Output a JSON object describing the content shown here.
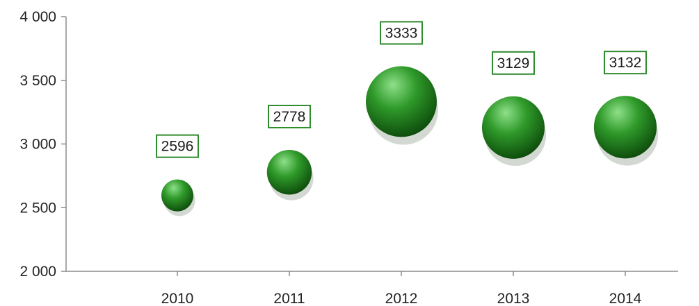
{
  "chart_data": {
    "type": "scatter",
    "subtype": "bubble",
    "title": "",
    "xlabel": "",
    "ylabel": "",
    "categories": [
      "2010",
      "2011",
      "2012",
      "2013",
      "2014"
    ],
    "values": [
      2596,
      2778,
      3333,
      3129,
      3132
    ],
    "data_labels": [
      "2596",
      "2778",
      "3333",
      "3129",
      "3132"
    ],
    "bubble_sizes": [
      2596,
      2778,
      3333,
      3129,
      3132
    ],
    "ylim": [
      2000,
      4000
    ],
    "y_ticks": [
      2000,
      2500,
      3000,
      3500,
      4000
    ],
    "y_tick_labels": [
      "2 000",
      "2 500",
      "3 000",
      "3 500",
      "4 000"
    ],
    "grid": false,
    "legend": "none",
    "colors": {
      "bubble_light": "#8fe08a",
      "bubble_mid": "#2f9a2a",
      "bubble_dark": "#0d4a0b",
      "label_border": "#2e8b2e",
      "axis": "#8c8c8c"
    }
  }
}
